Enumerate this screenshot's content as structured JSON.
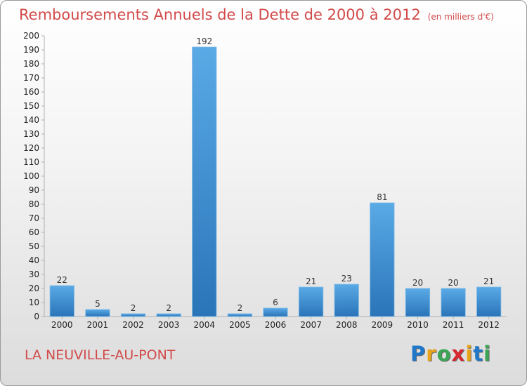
{
  "header": {
    "title": "Remboursements Annuels de la Dette de 2000 à 2012",
    "unit": "(en milliers d'€)"
  },
  "footer": {
    "commune": "LA NEUVILLE-AU-PONT",
    "logo_letters": [
      "P",
      "r",
      "o",
      "x",
      "i",
      "t",
      "i"
    ],
    "logo_colors": [
      "#1f78c8",
      "#e8a317",
      "#3aa655",
      "#d7282f",
      "#e8a317",
      "#1f78c8",
      "#3aa655"
    ]
  },
  "chart_data": {
    "type": "bar",
    "categories": [
      "2000",
      "2001",
      "2002",
      "2003",
      "2004",
      "2005",
      "2006",
      "2007",
      "2008",
      "2009",
      "2010",
      "2011",
      "2012"
    ],
    "values": [
      22,
      5,
      2,
      2,
      192,
      2,
      6,
      21,
      23,
      81,
      20,
      20,
      21
    ],
    "ylim": [
      0,
      200
    ],
    "ytick_step": 10,
    "grid": false,
    "bar_color_top": "#5aaae6",
    "bar_color_bottom": "#2a74b8",
    "axis_color": "#b0b0b0"
  }
}
